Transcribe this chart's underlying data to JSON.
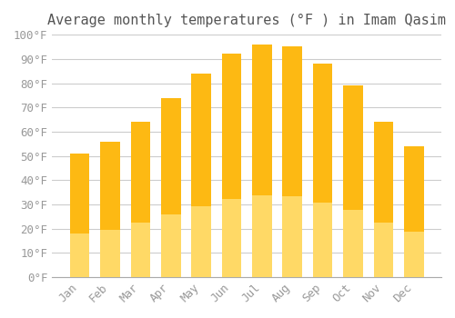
{
  "title": "Average monthly temperatures (°F ) in Imam Qasim",
  "months": [
    "Jan",
    "Feb",
    "Mar",
    "Apr",
    "May",
    "Jun",
    "Jul",
    "Aug",
    "Sep",
    "Oct",
    "Nov",
    "Dec"
  ],
  "values": [
    51,
    56,
    64,
    74,
    84,
    92,
    96,
    95,
    88,
    79,
    64,
    54
  ],
  "bar_color_top": "#FDB913",
  "bar_color_bottom": "#FFD966",
  "ylim": [
    0,
    100
  ],
  "ytick_step": 10,
  "background_color": "#FFFFFF",
  "grid_color": "#CCCCCC",
  "title_fontsize": 11,
  "tick_fontsize": 9
}
